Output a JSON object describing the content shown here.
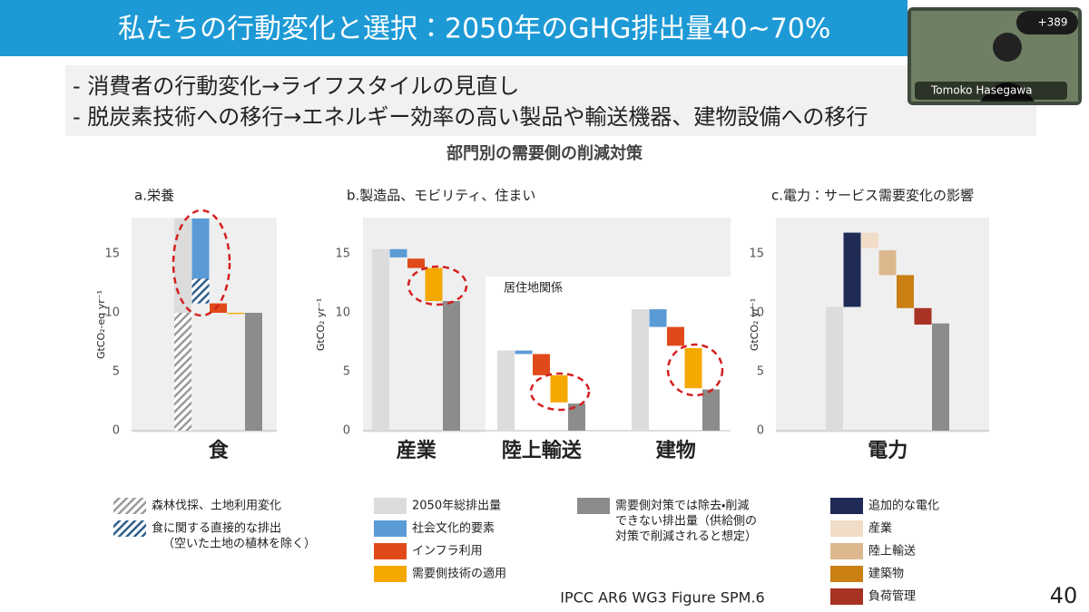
{
  "meeting": {
    "participants_badge": "+389",
    "participant_name": "Tomoko Hasegawa"
  },
  "slide": {
    "title": "私たちの行動変化と選択：2050年のGHG排出量40~70%",
    "bullets": [
      "- 消費者の行動変化→ライフスタイルの見直し",
      "- 脱炭素技術への移行→エネルギー効率の高い製品や輸送機器、建物設備への移行"
    ],
    "figure_title": "部門別の需要側の削減対策",
    "source": "IPCC AR6 WG3 Figure SPM.6",
    "page_number": 40
  },
  "chart_data": [
    {
      "type": "waterfall",
      "title": "a.栄養",
      "y_label": "GtCO₂-eq yr⁻¹",
      "ylim": [
        0,
        18
      ],
      "yticks": [
        0,
        5,
        10,
        15
      ],
      "groups": [
        {
          "label": "食",
          "bars": [
            [
              {
                "color": "#dcdcdc",
                "range": [
                  0,
                  18
                ]
              },
              {
                "color": "#9a9a9a",
                "pattern": "hatch",
                "range": [
                  0,
                  10
                ]
              }
            ],
            [
              {
                "color": "#5b9bd5",
                "range": [
                  10.8,
                  18
                ]
              },
              {
                "color": "#2f5f8f",
                "pattern": "hatch",
                "range": [
                  10.8,
                  12.9
                ]
              }
            ],
            [
              {
                "color": "#e04a1a",
                "range": [
                  10,
                  10.8
                ]
              }
            ],
            [
              {
                "color": "#f5a800",
                "range": [
                  9.9,
                  10
                ]
              }
            ],
            [
              {
                "color": "#8c8c8c",
                "range": [
                  0,
                  10
                ]
              }
            ]
          ]
        }
      ]
    },
    {
      "type": "waterfall",
      "title": "b.製造品、モビリティ、住まい",
      "y_label": "GtCO₂ yr⁻¹",
      "ylim": [
        0,
        18
      ],
      "yticks": [
        0,
        5,
        10,
        15
      ],
      "annotation": "居住地関係",
      "groups": [
        {
          "label": "産業",
          "bars": [
            [
              {
                "color": "#dcdcdc",
                "range": [
                  0,
                  15.4
                ]
              }
            ],
            [
              {
                "color": "#5b9bd5",
                "range": [
                  14.7,
                  15.4
                ]
              }
            ],
            [
              {
                "color": "#e04a1a",
                "range": [
                  13.8,
                  14.6
                ]
              }
            ],
            [
              {
                "color": "#f5a800",
                "range": [
                  11,
                  13.8
                ]
              }
            ],
            [
              {
                "color": "#8c8c8c",
                "range": [
                  0,
                  11
                ]
              }
            ]
          ]
        },
        {
          "label": "陸上輸送",
          "bars": [
            [
              {
                "color": "#dcdcdc",
                "range": [
                  0,
                  6.8
                ]
              }
            ],
            [
              {
                "color": "#5b9bd5",
                "range": [
                  6.5,
                  6.8
                ]
              }
            ],
            [
              {
                "color": "#e04a1a",
                "range": [
                  4.7,
                  6.5
                ]
              }
            ],
            [
              {
                "color": "#f5a800",
                "range": [
                  2.4,
                  4.7
                ]
              }
            ],
            [
              {
                "color": "#8c8c8c",
                "range": [
                  0,
                  2.3
                ]
              }
            ]
          ]
        },
        {
          "label": "建物",
          "bars": [
            [
              {
                "color": "#dcdcdc",
                "range": [
                  0,
                  10.3
                ]
              }
            ],
            [
              {
                "color": "#5b9bd5",
                "range": [
                  8.8,
                  10.3
                ]
              }
            ],
            [
              {
                "color": "#e04a1a",
                "range": [
                  7.2,
                  8.8
                ]
              }
            ],
            [
              {
                "color": "#f5a800",
                "range": [
                  3.6,
                  7
                ]
              }
            ],
            [
              {
                "color": "#8c8c8c",
                "range": [
                  0,
                  3.5
                ]
              }
            ]
          ]
        }
      ]
    },
    {
      "type": "waterfall",
      "title": "c.電力：サービス需要変化の影響",
      "y_label": "GtCO₂ yr⁻¹",
      "ylim": [
        0,
        18
      ],
      "yticks": [
        0,
        5,
        10,
        15
      ],
      "groups": [
        {
          "label": "電力",
          "bars": [
            [
              {
                "color": "#dcdcdc",
                "range": [
                  0,
                  10.5
                ]
              }
            ],
            [
              {
                "color": "#1f2a55",
                "range": [
                  10.5,
                  16.8
                ]
              }
            ],
            [
              {
                "color": "#f1dcc8",
                "range": [
                  15.5,
                  16.8
                ]
              }
            ],
            [
              {
                "color": "#ddb88f",
                "range": [
                  13.2,
                  15.3
                ]
              }
            ],
            [
              {
                "color": "#c97f12",
                "range": [
                  10.4,
                  13.2
                ]
              }
            ],
            [
              {
                "color": "#a83224",
                "range": [
                  9,
                  10.4
                ]
              }
            ],
            [
              {
                "color": "#8c8c8c",
                "range": [
                  0,
                  9.1
                ]
              }
            ]
          ]
        }
      ]
    }
  ],
  "legend": [
    [
      {
        "color": "#9a9a9a",
        "pattern": "hatch",
        "lines": [
          "森林伐採、土地利用変化"
        ]
      },
      {
        "color": "#2f5f8f",
        "pattern": "hatch",
        "lines": [
          "食に関する直接的な排出",
          "（空いた土地の植林を除く）"
        ]
      }
    ],
    [
      {
        "color": "#dcdcdc",
        "lines": [
          "2050年総排出量"
        ]
      },
      {
        "color": "#5b9bd5",
        "lines": [
          "社会文化的要素"
        ]
      },
      {
        "color": "#e04a1a",
        "lines": [
          "インフラ利用"
        ]
      },
      {
        "color": "#f5a800",
        "lines": [
          "需要側技術の適用"
        ]
      }
    ],
    [
      {
        "color": "#8c8c8c",
        "lines": [
          "需要側対策では除去・削減",
          "できない排出量（供給側の",
          "対策で削減されると想定）"
        ]
      }
    ],
    [
      {
        "color": "#1f2a55",
        "lines": [
          "追加的な電化"
        ]
      },
      {
        "color": "#f1dcc8",
        "lines": [
          "産業"
        ]
      },
      {
        "color": "#ddb88f",
        "lines": [
          "陸上輸送"
        ]
      },
      {
        "color": "#c97f12",
        "lines": [
          "建築物"
        ]
      },
      {
        "color": "#a83224",
        "lines": [
          "負荷管理"
        ]
      }
    ]
  ]
}
